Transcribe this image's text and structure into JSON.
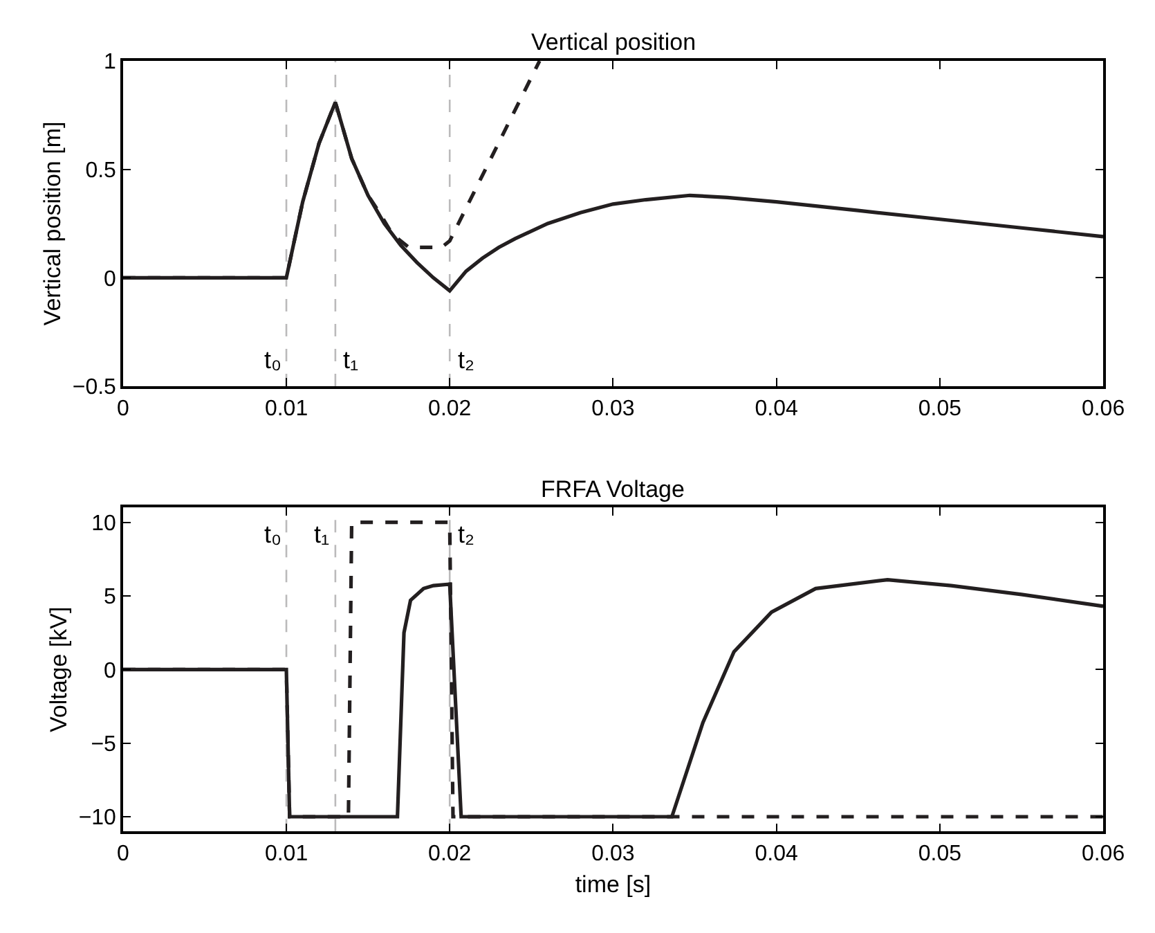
{
  "chart_data": [
    {
      "type": "line",
      "title": "Vertical position",
      "ylabel": "Vertical position [m]",
      "xlim": [
        0,
        0.06
      ],
      "xticks": [
        0,
        0.01,
        0.02,
        0.03,
        0.04,
        0.05,
        0.06
      ],
      "ylim": [
        -0.5,
        1
      ],
      "yticks": [
        {
          "value": -0.5,
          "label": "−0.5"
        },
        0,
        0.5,
        1
      ],
      "series": [
        {
          "color": "#231f20",
          "line_style": "solid",
          "x": [
            0,
            0.01,
            0.011,
            0.012,
            0.013,
            0.014,
            0.015,
            0.016,
            0.017,
            0.018,
            0.019,
            0.02,
            0.021,
            0.022,
            0.023,
            0.024,
            0.026,
            0.028,
            0.03,
            0.032,
            0.0347,
            0.037,
            0.04,
            0.045,
            0.05,
            0.055,
            0.06
          ],
          "values": [
            0,
            0,
            0.35,
            0.62,
            0.81,
            0.55,
            0.38,
            0.25,
            0.15,
            0.07,
            0.0,
            -0.06,
            0.03,
            0.09,
            0.14,
            0.18,
            0.25,
            0.3,
            0.34,
            0.36,
            0.38,
            0.37,
            0.35,
            0.31,
            0.27,
            0.23,
            0.19
          ]
        },
        {
          "color": "#231f20",
          "line_style": "dashed",
          "x": [
            0,
            0.01,
            0.011,
            0.012,
            0.013,
            0.014,
            0.015,
            0.0157,
            0.0165,
            0.0175,
            0.0195,
            0.02,
            0.0255
          ],
          "values": [
            0,
            0,
            0.35,
            0.62,
            0.81,
            0.55,
            0.38,
            0.3,
            0.2,
            0.14,
            0.14,
            0.17,
            1
          ]
        }
      ],
      "ref_lines": [
        {
          "axis": "x",
          "value": 0.01,
          "label": "t₀",
          "color": "#231f20",
          "line_style": "dashed"
        },
        {
          "axis": "x",
          "value": 0.013,
          "label": "t₁",
          "color": "#231f20",
          "line_style": "dashed"
        },
        {
          "axis": "x",
          "value": 0.02,
          "label": "t₂",
          "color": "#231f20",
          "line_style": "dashed"
        }
      ]
    },
    {
      "type": "line",
      "title": "FRFA Voltage",
      "xlabel": "time [s]",
      "ylabel": "Voltage [kV]",
      "xlim": [
        0,
        0.06
      ],
      "xticks": [
        0,
        0.01,
        0.02,
        0.03,
        0.04,
        0.05,
        0.06
      ],
      "ylim": [
        -11,
        11
      ],
      "yticks": [
        {
          "value": -10,
          "label": "−10"
        },
        {
          "value": -5,
          "label": "−5"
        },
        0,
        5,
        10
      ],
      "series": [
        {
          "color": "#231f20",
          "line_style": "solid",
          "x": [
            0,
            0.01,
            0.0102,
            0.0168,
            0.0172,
            0.0176,
            0.0184,
            0.019,
            0.02,
            0.0207,
            0.0336,
            0.0355,
            0.0374,
            0.0397,
            0.0424,
            0.0468,
            0.0507,
            0.055,
            0.06
          ],
          "values": [
            0,
            0,
            -10,
            -10,
            2.5,
            4.7,
            5.5,
            5.7,
            5.8,
            -10,
            -10,
            -3.6,
            1.2,
            3.9,
            5.5,
            6.1,
            5.7,
            5.1,
            4.3
          ]
        },
        {
          "color": "#231f20",
          "line_style": "dashed",
          "x": [
            0,
            0.01,
            0.0102,
            0.0138,
            0.014,
            0.02,
            0.0202,
            0.06
          ],
          "values": [
            0,
            0,
            -10,
            -10,
            10,
            10,
            -10,
            -10
          ]
        }
      ],
      "ref_lines": [
        {
          "axis": "x",
          "value": 0.01,
          "label": "t₀",
          "color": "#231f20",
          "line_style": "dashed"
        },
        {
          "axis": "x",
          "value": 0.013,
          "label": "t₁",
          "color": "#231f20",
          "line_style": "dashed"
        },
        {
          "axis": "x",
          "value": 0.02,
          "label": "t₂",
          "color": "#231f20",
          "line_style": "dashed"
        }
      ]
    }
  ]
}
